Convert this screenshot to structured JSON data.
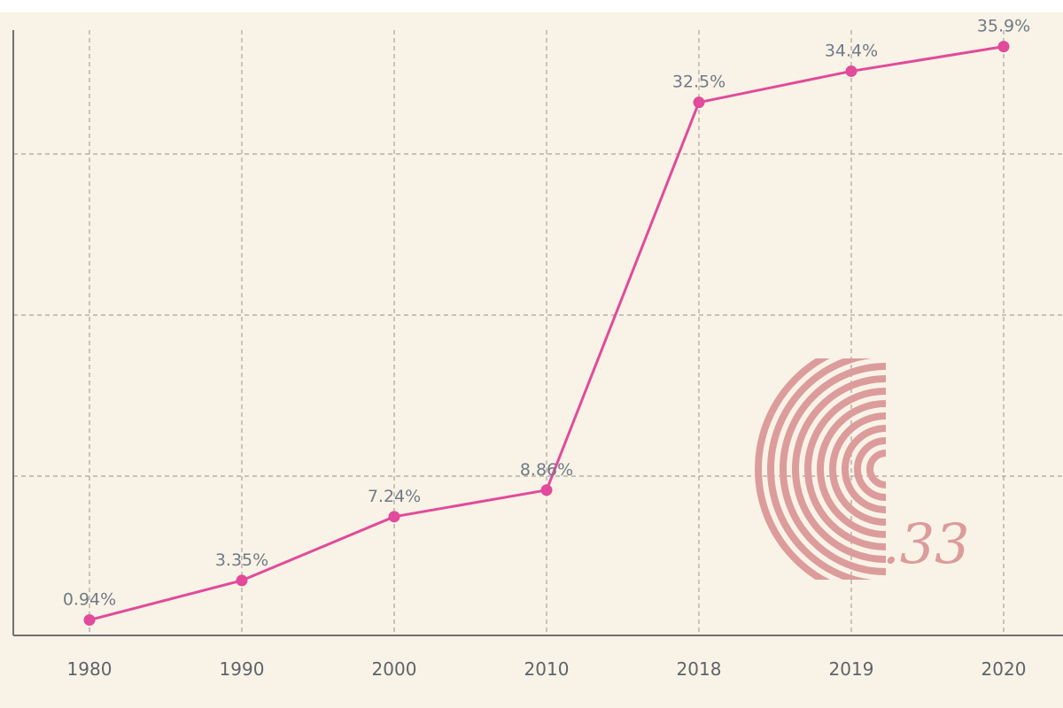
{
  "chart_data": {
    "type": "line",
    "x": [
      "1980",
      "1990",
      "2000",
      "2010",
      "2018",
      "2019",
      "2020"
    ],
    "series": [
      {
        "values": [
          0.94,
          3.35,
          7.24,
          8.86,
          32.5,
          34.4,
          35.9
        ],
        "labels": [
          "0.94%",
          "3.35%",
          "7.24%",
          "8.86%",
          "32.5%",
          "34.4%",
          "35.9%"
        ]
      }
    ],
    "title": "",
    "xlabel": "",
    "ylabel": "",
    "ylim": [
      0,
      37.5
    ],
    "grid": true,
    "legend": "none"
  },
  "colors": {
    "background": "#f8f3e6",
    "series": "#e24a9b",
    "grid": "#a8a49b",
    "axis": "#707070",
    "labels": "#727a86",
    "stamp": "#dc9c9c"
  },
  "watermark": {
    "text": ".33"
  }
}
